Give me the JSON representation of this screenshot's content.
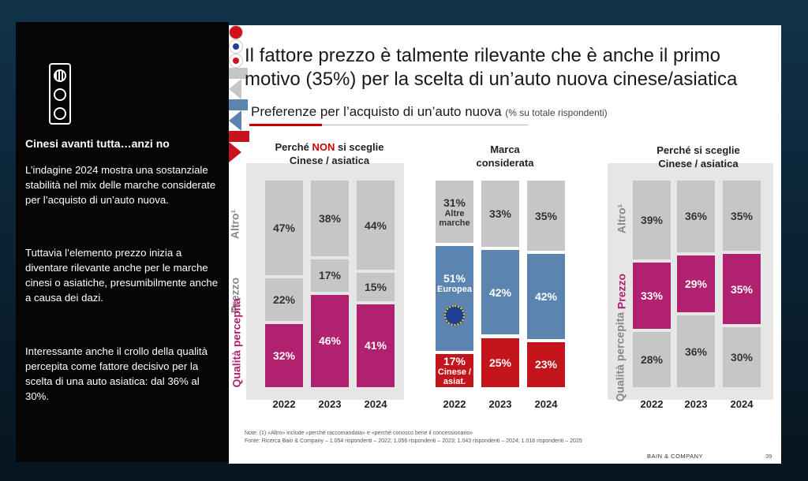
{
  "side": {
    "heading": "Cinesi avanti tutta…anzi no",
    "p1": "L’indagine 2024 mostra una sostanziale stabilità nel mix delle marche considerate per l’acquisto di un’auto nuova.",
    "p2": "Tuttavia l’elemento prezzo inizia a diventare rilevante anche per le marche cinesi o asiatiche, presumibilmente anche a causa dei dazi.",
    "p3": "Interessante anche il crollo della qualità percepita come fattore decisivo per la scelta di una auto asiatica: dal 36% al 30%.",
    "icon": "traffic-light-icon"
  },
  "slide": {
    "title": "Il fattore prezzo è talmente rilevante che è anche il primo motivo (35%) per la scelta di un’auto nuova cinese/asiatica",
    "subtitle": "Preferenze per l’acquisto di un’auto nuova",
    "subtitle_note": "(% su totale rispondenti)",
    "note1": "Note: (1) «Altro» include «perché raccomandata» e «perché conosco bene il concessionario»",
    "note2": "Fonte: Ricerca Bain & Company – 1.054 rispondenti – 2022; 1.056 rispondenti – 2023; 1.043 rispondenti – 2024; 1.018 rispondenti – 2025",
    "logo": "BAIN & COMPANY",
    "page": "39"
  },
  "colors": {
    "grey": "#c6c6c6",
    "magenta": "#b0216f",
    "blue": "#5b84b1",
    "red": "#c4141c",
    "panel": "#e6e6e6"
  },
  "chart_data": [
    {
      "type": "bar",
      "stacked": true,
      "title_pre": "Perché",
      "title_non": "NON",
      "title_post": "si sceglie Cinese / asiatica",
      "categories": [
        "2022",
        "2023",
        "2024"
      ],
      "series": [
        {
          "name": "Qualità percepita",
          "values": [
            32,
            46,
            41
          ]
        },
        {
          "name": "Prezzo",
          "values": [
            22,
            17,
            15
          ]
        },
        {
          "name": "Altro¹",
          "values": [
            47,
            38,
            44
          ]
        }
      ]
    },
    {
      "type": "bar",
      "stacked": true,
      "title": "Marca considerata",
      "categories": [
        "2022",
        "2023",
        "2024"
      ],
      "series": [
        {
          "name": "Cinese / asiat.",
          "values": [
            17,
            25,
            23
          ]
        },
        {
          "name": "Europea",
          "values": [
            51,
            42,
            42
          ]
        },
        {
          "name": "Altre marche",
          "values": [
            31,
            33,
            35
          ]
        }
      ]
    },
    {
      "type": "bar",
      "stacked": true,
      "title": "Perché si sceglie Cinese / asiatica",
      "categories": [
        "2022",
        "2023",
        "2024"
      ],
      "series": [
        {
          "name": "Qualità percepita",
          "values": [
            28,
            36,
            30
          ]
        },
        {
          "name": "Prezzo",
          "values": [
            33,
            29,
            35
          ]
        },
        {
          "name": "Altro¹",
          "values": [
            39,
            36,
            35
          ]
        }
      ]
    }
  ],
  "labels": {
    "altro": "Altro¹",
    "prezzo": "Prezzo",
    "qualita1": "Qualità",
    "qualita2": "percepita",
    "altre1": "Altre",
    "altre2": "marche",
    "europea": "Europea",
    "cinese1": "Cinese",
    "cinese2": "/ asiat."
  }
}
